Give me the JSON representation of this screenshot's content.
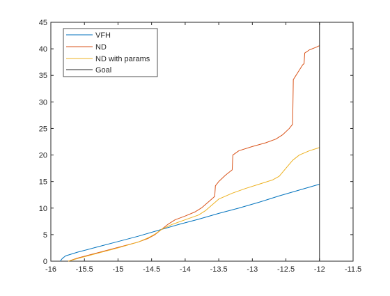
{
  "chart_data": {
    "type": "line",
    "xlim": [
      -16,
      -11.5
    ],
    "ylim": [
      0,
      45
    ],
    "x_ticks": [
      -16,
      -15.5,
      -15,
      -14.5,
      -14,
      -13.5,
      -13,
      -12.5,
      -12,
      -11.5
    ],
    "x_tick_labels": [
      "-16",
      "-15.5",
      "-15",
      "-14.5",
      "-14",
      "-13.5",
      "-13",
      "-12.5",
      "-12",
      "-11.5"
    ],
    "y_ticks": [
      0,
      5,
      10,
      15,
      20,
      25,
      30,
      35,
      40,
      45
    ],
    "y_tick_labels": [
      "0",
      "5",
      "10",
      "15",
      "20",
      "25",
      "30",
      "35",
      "40",
      "45"
    ],
    "grid": false,
    "legend_position": "top-left",
    "series": [
      {
        "name": "VFH",
        "color": "#0072BD",
        "points": [
          [
            -15.86,
            0
          ],
          [
            -15.83,
            0.5
          ],
          [
            -15.78,
            1.0
          ],
          [
            -15.6,
            1.7
          ],
          [
            -15.3,
            2.7
          ],
          [
            -15.0,
            3.7
          ],
          [
            -14.7,
            4.7
          ],
          [
            -14.4,
            5.8
          ],
          [
            -14.1,
            6.9
          ],
          [
            -13.8,
            7.9
          ],
          [
            -13.5,
            9.0
          ],
          [
            -13.2,
            10.0
          ],
          [
            -12.9,
            11.1
          ],
          [
            -12.6,
            12.3
          ],
          [
            -12.3,
            13.4
          ],
          [
            -12.0,
            14.5
          ]
        ]
      },
      {
        "name": "ND",
        "color": "#D95319",
        "points": [
          [
            -15.74,
            0
          ],
          [
            -15.6,
            0.6
          ],
          [
            -15.3,
            1.6
          ],
          [
            -15.0,
            2.6
          ],
          [
            -14.7,
            3.6
          ],
          [
            -14.55,
            4.3
          ],
          [
            -14.45,
            5.0
          ],
          [
            -14.35,
            6.0
          ],
          [
            -14.25,
            7.0
          ],
          [
            -14.15,
            7.8
          ],
          [
            -14.0,
            8.5
          ],
          [
            -13.85,
            9.3
          ],
          [
            -13.75,
            10.1
          ],
          [
            -13.65,
            11.2
          ],
          [
            -13.56,
            12.2
          ],
          [
            -13.55,
            14.2
          ],
          [
            -13.5,
            15.0
          ],
          [
            -13.4,
            16.2
          ],
          [
            -13.3,
            17.2
          ],
          [
            -13.29,
            20.0
          ],
          [
            -13.2,
            20.8
          ],
          [
            -13.0,
            21.6
          ],
          [
            -12.8,
            22.3
          ],
          [
            -12.65,
            23.0
          ],
          [
            -12.55,
            23.8
          ],
          [
            -12.45,
            25.0
          ],
          [
            -12.4,
            25.8
          ],
          [
            -12.39,
            34.2
          ],
          [
            -12.3,
            36.0
          ],
          [
            -12.25,
            37.0
          ],
          [
            -12.23,
            37.2
          ],
          [
            -12.22,
            39.2
          ],
          [
            -12.15,
            39.8
          ],
          [
            -12.05,
            40.3
          ],
          [
            -12.0,
            40.6
          ]
        ]
      },
      {
        "name": "ND with params",
        "color": "#EDB120",
        "points": [
          [
            -15.74,
            0
          ],
          [
            -15.6,
            0.5
          ],
          [
            -15.3,
            1.5
          ],
          [
            -15.0,
            2.5
          ],
          [
            -14.7,
            3.6
          ],
          [
            -14.55,
            4.4
          ],
          [
            -14.45,
            5.1
          ],
          [
            -14.35,
            6.0
          ],
          [
            -14.2,
            6.9
          ],
          [
            -14.0,
            7.8
          ],
          [
            -13.8,
            8.7
          ],
          [
            -13.7,
            9.5
          ],
          [
            -13.6,
            10.6
          ],
          [
            -13.5,
            11.7
          ],
          [
            -13.3,
            12.8
          ],
          [
            -13.1,
            13.7
          ],
          [
            -12.9,
            14.5
          ],
          [
            -12.7,
            15.3
          ],
          [
            -12.6,
            16.0
          ],
          [
            -12.5,
            17.5
          ],
          [
            -12.4,
            19.0
          ],
          [
            -12.3,
            20.0
          ],
          [
            -12.15,
            20.8
          ],
          [
            -12.0,
            21.4
          ]
        ]
      },
      {
        "name": "Goal",
        "color": "#262626",
        "points": [
          [
            -12,
            0
          ],
          [
            -12,
            45
          ]
        ]
      }
    ]
  }
}
